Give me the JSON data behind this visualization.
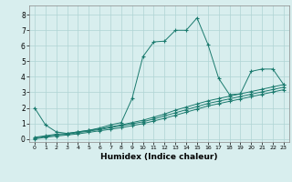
{
  "xlabel": "Humidex (Indice chaleur)",
  "xlim": [
    -0.5,
    23.5
  ],
  "ylim": [
    -0.2,
    8.6
  ],
  "xticks": [
    0,
    1,
    2,
    3,
    4,
    5,
    6,
    7,
    8,
    9,
    10,
    11,
    12,
    13,
    14,
    15,
    16,
    17,
    18,
    19,
    20,
    21,
    22,
    23
  ],
  "yticks": [
    0,
    1,
    2,
    3,
    4,
    5,
    6,
    7,
    8
  ],
  "line_color": "#1a7a6e",
  "bg_color": "#d8eeee",
  "grid_color": "#afd4d4",
  "series": [
    {
      "x": [
        0,
        1,
        2,
        3,
        4,
        5,
        6,
        7,
        8,
        9,
        10,
        11,
        12,
        13,
        14,
        15,
        16,
        17,
        18,
        19,
        20,
        21,
        22,
        23
      ],
      "y": [
        2.0,
        0.9,
        0.45,
        0.35,
        0.45,
        0.55,
        0.7,
        0.9,
        1.05,
        2.6,
        5.3,
        6.25,
        6.3,
        7.0,
        7.0,
        7.8,
        6.1,
        3.9,
        2.85,
        2.9,
        4.35,
        4.5,
        4.5,
        3.5
      ]
    },
    {
      "x": [
        0,
        1,
        2,
        3,
        4,
        5,
        6,
        7,
        8,
        9,
        10,
        11,
        12,
        13,
        14,
        15,
        16,
        17,
        18,
        19,
        20,
        21,
        22,
        23
      ],
      "y": [
        0.1,
        0.2,
        0.3,
        0.35,
        0.45,
        0.55,
        0.65,
        0.78,
        0.9,
        1.05,
        1.2,
        1.4,
        1.6,
        1.85,
        2.05,
        2.25,
        2.45,
        2.6,
        2.75,
        2.9,
        3.05,
        3.2,
        3.35,
        3.5
      ]
    },
    {
      "x": [
        0,
        1,
        2,
        3,
        4,
        5,
        6,
        7,
        8,
        9,
        10,
        11,
        12,
        13,
        14,
        15,
        16,
        17,
        18,
        19,
        20,
        21,
        22,
        23
      ],
      "y": [
        0.05,
        0.15,
        0.25,
        0.3,
        0.4,
        0.5,
        0.6,
        0.72,
        0.84,
        0.97,
        1.1,
        1.28,
        1.48,
        1.68,
        1.88,
        2.08,
        2.28,
        2.43,
        2.58,
        2.73,
        2.88,
        3.03,
        3.18,
        3.33
      ]
    },
    {
      "x": [
        0,
        1,
        2,
        3,
        4,
        5,
        6,
        7,
        8,
        9,
        10,
        11,
        12,
        13,
        14,
        15,
        16,
        17,
        18,
        19,
        20,
        21,
        22,
        23
      ],
      "y": [
        0.0,
        0.1,
        0.18,
        0.25,
        0.32,
        0.42,
        0.52,
        0.62,
        0.72,
        0.85,
        0.98,
        1.15,
        1.33,
        1.52,
        1.72,
        1.92,
        2.12,
        2.27,
        2.42,
        2.57,
        2.72,
        2.87,
        3.02,
        3.17
      ]
    }
  ]
}
